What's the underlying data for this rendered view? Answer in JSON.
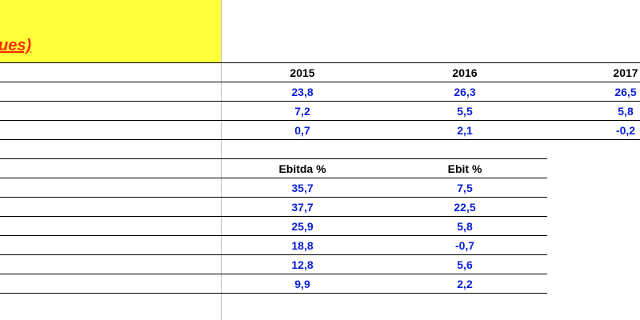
{
  "title": "ues)",
  "years": [
    "2015",
    "2016",
    "2017"
  ],
  "yearly_rows": [
    [
      "23,8",
      "26,3",
      "26,5"
    ],
    [
      "7,2",
      "5,5",
      "5,8"
    ],
    [
      "0,7",
      "2,1",
      "-0,2"
    ]
  ],
  "margin_headers": [
    "Ebitda %",
    "Ebit %"
  ],
  "margin_rows": [
    [
      "35,7",
      "7,5"
    ],
    [
      "37,7",
      "22,5"
    ],
    [
      "25,9",
      "5,8"
    ],
    [
      "18,8",
      "-0,7"
    ],
    [
      "12,8",
      "5,6"
    ],
    [
      "9,9",
      "2,2"
    ]
  ],
  "colors": {
    "title": "#ff2a00",
    "highlight": "#ffff3c",
    "values": "#0a1ed6"
  }
}
